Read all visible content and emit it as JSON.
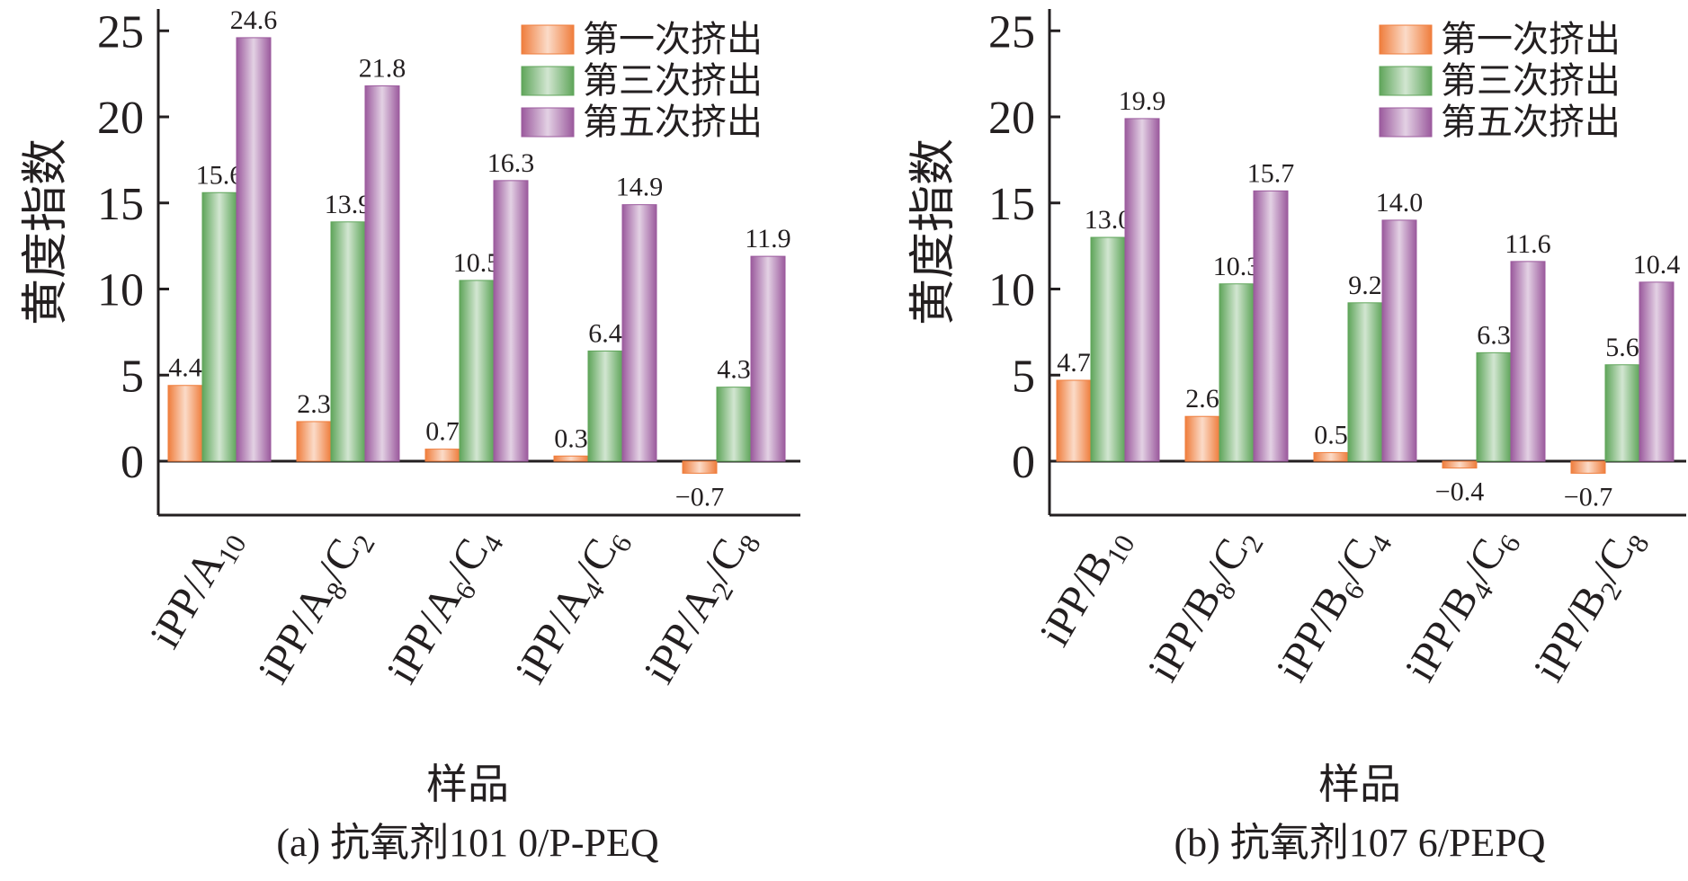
{
  "chart_data": [
    {
      "type": "bar",
      "caption": "(a) 抗氧剂101 0/P-PEQ",
      "ylabel": "黄度指数",
      "xlabel": "样品",
      "ylim": [
        -3,
        25
      ],
      "yticks": [
        0,
        5,
        10,
        15,
        20,
        25
      ],
      "categories": [
        {
          "main": "iPP/A",
          "sub": "10",
          "tail": "",
          "tailsub": ""
        },
        {
          "main": "iPP/A",
          "sub": "8",
          "tail": "/C",
          "tailsub": "2"
        },
        {
          "main": "iPP/A",
          "sub": "6",
          "tail": "/C",
          "tailsub": "4"
        },
        {
          "main": "iPP/A",
          "sub": "4",
          "tail": "/C",
          "tailsub": "6"
        },
        {
          "main": "iPP/A",
          "sub": "2",
          "tail": "/C",
          "tailsub": "8"
        }
      ],
      "series": [
        {
          "name": "第一次挤出",
          "color": "#ef7d3c",
          "values": [
            4.4,
            2.3,
            0.7,
            0.3,
            -0.7
          ],
          "labels": [
            "4.4",
            "2.3",
            "0.7",
            "0.3",
            "−0.7"
          ]
        },
        {
          "name": "第三次挤出",
          "color": "#5fa55a",
          "values": [
            15.6,
            13.9,
            10.5,
            6.4,
            4.3
          ],
          "labels": [
            "15.6",
            "13.9",
            "10.5",
            "6.4",
            "4.3"
          ]
        },
        {
          "name": "第五次挤出",
          "color": "#9b5a9d",
          "values": [
            24.6,
            21.8,
            16.3,
            14.9,
            11.9
          ],
          "labels": [
            "24.6",
            "21.8",
            "16.3",
            "14.9",
            "11.9"
          ]
        }
      ],
      "legend_position": "top-right",
      "grid": false
    },
    {
      "type": "bar",
      "caption": "(b) 抗氧剂107 6/PEPQ",
      "ylabel": "黄度指数",
      "xlabel": "样品",
      "ylim": [
        -3,
        25
      ],
      "yticks": [
        0,
        5,
        10,
        15,
        20,
        25
      ],
      "categories": [
        {
          "main": "iPP/B",
          "sub": "10",
          "tail": "",
          "tailsub": ""
        },
        {
          "main": "iPP/B",
          "sub": "8",
          "tail": "/C",
          "tailsub": "2"
        },
        {
          "main": "iPP/B",
          "sub": "6",
          "tail": "/C",
          "tailsub": "4"
        },
        {
          "main": "iPP/B",
          "sub": "4",
          "tail": "/C",
          "tailsub": "6"
        },
        {
          "main": "iPP/B",
          "sub": "2",
          "tail": "/C",
          "tailsub": "8"
        }
      ],
      "series": [
        {
          "name": "第一次挤出",
          "color": "#ef7d3c",
          "values": [
            4.7,
            2.6,
            0.5,
            -0.4,
            -0.7
          ],
          "labels": [
            "4.7",
            "2.6",
            "0.5",
            "−0.4",
            "−0.7"
          ]
        },
        {
          "name": "第三次挤出",
          "color": "#5fa55a",
          "values": [
            13.0,
            10.3,
            9.2,
            6.3,
            5.6
          ],
          "labels": [
            "13.0",
            "10.3",
            "9.2",
            "6.3",
            "5.6"
          ]
        },
        {
          "name": "第五次挤出",
          "color": "#9b5a9d",
          "values": [
            19.9,
            15.7,
            14.0,
            11.6,
            10.4
          ],
          "labels": [
            "19.9",
            "15.7",
            "14.0",
            "11.6",
            "10.4"
          ]
        }
      ],
      "legend_position": "top-right",
      "grid": false
    }
  ]
}
